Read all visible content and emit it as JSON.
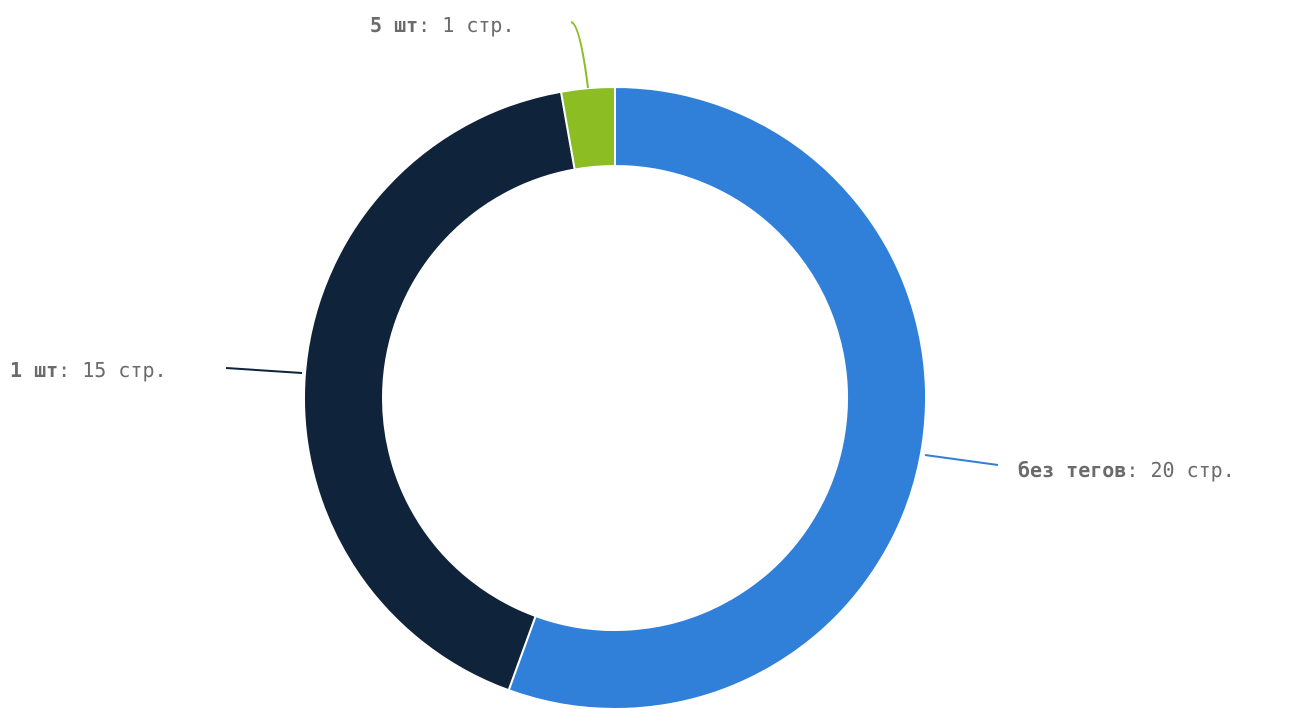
{
  "chart_data": {
    "type": "pie",
    "donut": true,
    "unit": "стр.",
    "separator": ": ",
    "slices": [
      {
        "label": "без тегов",
        "value": 20,
        "color": "#3080d9"
      },
      {
        "label": "1 шт",
        "value": 15,
        "color": "#0f233a"
      },
      {
        "label": "5 шт",
        "value": 1,
        "color": "#8cbd22"
      }
    ]
  }
}
